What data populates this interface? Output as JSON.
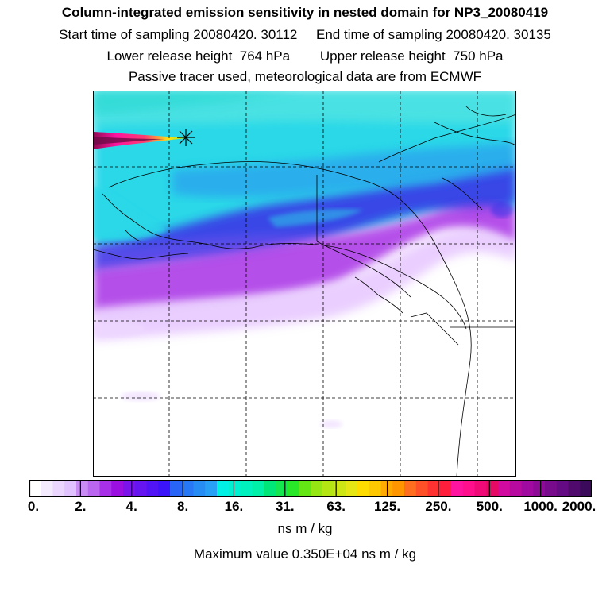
{
  "header": {
    "title": "Column-integrated emission sensitivity in nested domain for NP3_20080419",
    "sampling_line": "Start time of sampling 20080420. 30112     End time of sampling 20080420. 30135",
    "release_line": "Lower release height  764 hPa        Upper release height  750 hPa",
    "tracer_line": "Passive tracer used, meteorological data are from ECMWF"
  },
  "colorbar": {
    "colors": [
      "#ffffff",
      "#f5ebff",
      "#ebd6ff",
      "#e0c2ff",
      "#c98cf5",
      "#bb66f0",
      "#a830e6",
      "#9b0fe0",
      "#7a14eb",
      "#6614f0",
      "#5014f5",
      "#3c14fa",
      "#2864f5",
      "#2878f5",
      "#288cf5",
      "#28a0f5",
      "#00f0e6",
      "#00f0d2",
      "#00f0be",
      "#00f0aa",
      "#00e678",
      "#14e650",
      "#28e628",
      "#64e614",
      "#96e614",
      "#b4e614",
      "#cde614",
      "#e6e614",
      "#ffdc00",
      "#ffc800",
      "#ffaa00",
      "#ff9600",
      "#ff6e1e",
      "#ff5028",
      "#ff3232",
      "#ff1e3c",
      "#ff14a0",
      "#ff0f8c",
      "#f00a78",
      "#e60a64",
      "#d20aa0",
      "#b90aa0",
      "#a00aa0",
      "#8c0a96",
      "#780a8c",
      "#640a82",
      "#500a6e",
      "#3c0a5a"
    ],
    "tick_labels": [
      "0.",
      "2.",
      "4.",
      "8.",
      "16.",
      "31.",
      "63.",
      "125.",
      "250.",
      "500.",
      "1000.",
      "2000."
    ],
    "unit_label": "ns m / kg"
  },
  "footer": {
    "max_value_line": "Maximum value  0.350E+04 ns m / kg"
  },
  "map": {
    "plume_colors": {
      "background": "#2ad8e8",
      "blue": "#3a2ee6",
      "purple": "#a830e6",
      "lilac": "#e6c6ff"
    },
    "release_marker": "star-symbol"
  }
}
